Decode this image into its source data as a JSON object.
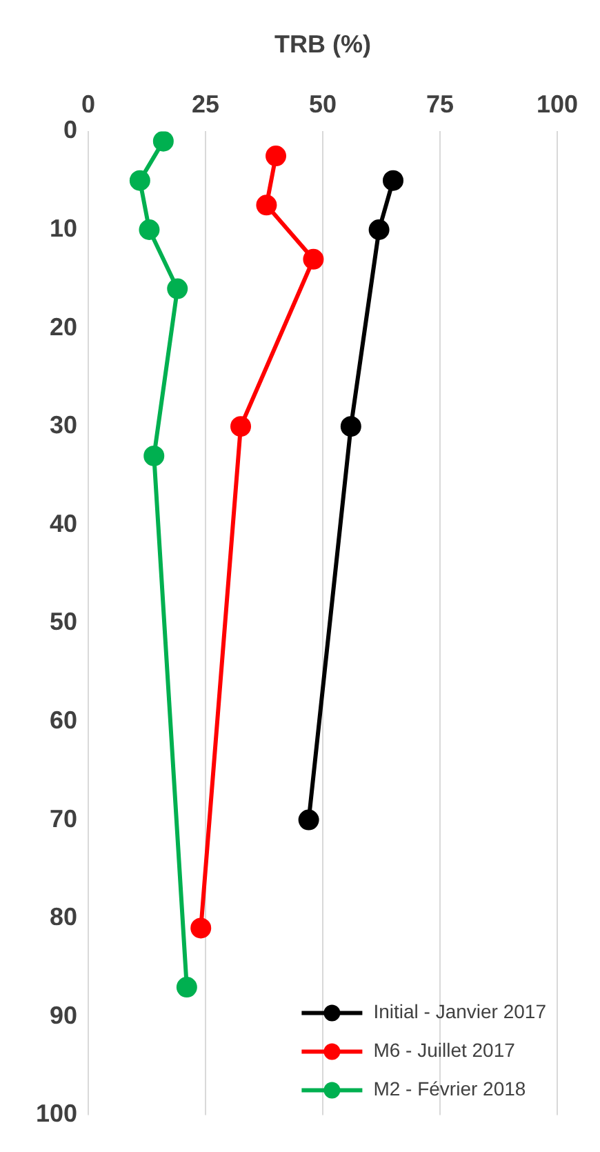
{
  "chart_data": {
    "type": "line",
    "xlabel": "TRB (%)",
    "xlim": [
      0,
      100
    ],
    "xticks": [
      0,
      25,
      50,
      75,
      100
    ],
    "ylim": [
      100,
      0
    ],
    "yticks": [
      0,
      10,
      20,
      30,
      40,
      50,
      60,
      70,
      80,
      90,
      100
    ],
    "grid": "x",
    "legend": "bottom right",
    "marker": "circle",
    "line_style": "solid",
    "series": [
      {
        "name": "Initial - Janvier 2017",
        "color": "#000000",
        "x": [
          65,
          62,
          56,
          47
        ],
        "values": [
          5,
          10,
          30,
          70
        ]
      },
      {
        "name": "M6 - Juillet 2017",
        "color": "#ff0000",
        "x": [
          40,
          38,
          48,
          32.5,
          24
        ],
        "values": [
          2.5,
          7.5,
          13,
          30,
          81
        ]
      },
      {
        "name": "M2 - Février 2018",
        "color": "#00b050",
        "x": [
          16,
          11,
          13,
          19,
          14,
          21
        ],
        "values": [
          1,
          5,
          10,
          16,
          33,
          87
        ]
      }
    ]
  }
}
